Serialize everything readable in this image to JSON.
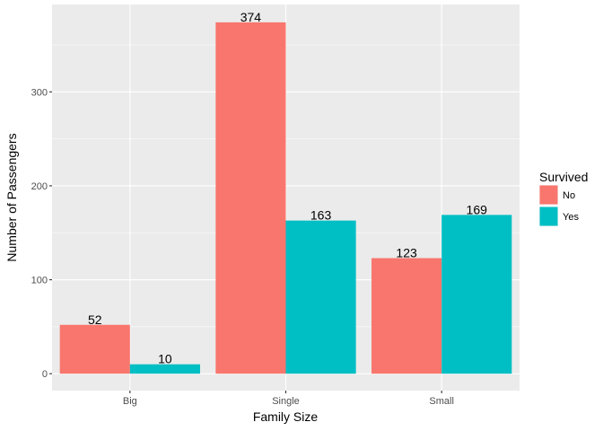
{
  "chart_data": {
    "type": "bar",
    "xlabel": "Family Size",
    "ylabel": "Number of Passengers",
    "categories": [
      "Big",
      "Single",
      "Small"
    ],
    "series": [
      {
        "name": "No",
        "values": [
          52,
          374,
          123
        ],
        "color": "#F8766D"
      },
      {
        "name": "Yes",
        "values": [
          10,
          163,
          169
        ],
        "color": "#00BFC4"
      }
    ],
    "ylim": [
      -18,
      393
    ],
    "yticks": [
      0,
      100,
      200,
      300
    ],
    "grid": true,
    "legend": {
      "title": "Survived",
      "position": "right"
    },
    "panel_background": "#EBEBEB",
    "grid_color": "#FFFFFF"
  }
}
